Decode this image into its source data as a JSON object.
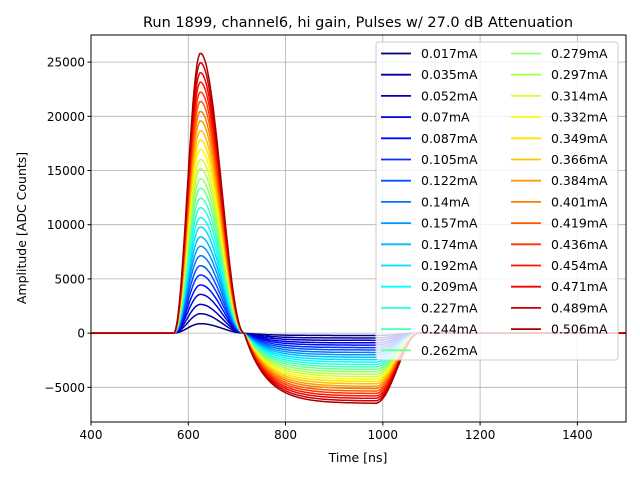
{
  "chart_data": {
    "type": "line",
    "title": "Run 1899, channel6, hi gain, Pulses w/ 27.0 dB Attenuation",
    "xlabel": "Time [ns]",
    "ylabel": "Amplitude [ADC Counts]",
    "xlim": [
      400,
      1500
    ],
    "ylim": [
      -8200,
      27500
    ],
    "xticks": [
      400,
      600,
      800,
      1000,
      1200,
      1400
    ],
    "yticks": [
      -5000,
      0,
      5000,
      10000,
      15000,
      20000,
      25000
    ],
    "grid": true,
    "legend_placement": "top-right",
    "legend_columns": 2,
    "colormap": "jet",
    "pulse_shape": {
      "onset_ns": 570,
      "peak_ns": 625,
      "zero_crossing_ns": 715,
      "undershoot_end_ns": 985,
      "recovered_ns": 1075
    },
    "series": [
      {
        "name": "0.017mA",
        "peak": 870,
        "undershoot": -220
      },
      {
        "name": "0.035mA",
        "peak": 1790,
        "undershoot": -450
      },
      {
        "name": "0.052mA",
        "peak": 2650,
        "undershoot": -670
      },
      {
        "name": "0.07mA",
        "peak": 3570,
        "undershoot": -900
      },
      {
        "name": "0.087mA",
        "peak": 4440,
        "undershoot": -1110
      },
      {
        "name": "0.105mA",
        "peak": 5360,
        "undershoot": -1340
      },
      {
        "name": "0.122mA",
        "peak": 6220,
        "undershoot": -1560
      },
      {
        "name": "0.14mA",
        "peak": 7140,
        "undershoot": -1790
      },
      {
        "name": "0.157mA",
        "peak": 8010,
        "undershoot": -2010
      },
      {
        "name": "0.174mA",
        "peak": 8870,
        "undershoot": -2230
      },
      {
        "name": "0.192mA",
        "peak": 9790,
        "undershoot": -2460
      },
      {
        "name": "0.209mA",
        "peak": 10660,
        "undershoot": -2680
      },
      {
        "name": "0.227mA",
        "peak": 11580,
        "undershoot": -2910
      },
      {
        "name": "0.244mA",
        "peak": 12440,
        "undershoot": -3130
      },
      {
        "name": "0.262mA",
        "peak": 13360,
        "undershoot": -3350
      },
      {
        "name": "0.279mA",
        "peak": 14230,
        "undershoot": -3570
      },
      {
        "name": "0.297mA",
        "peak": 15150,
        "undershoot": -3800
      },
      {
        "name": "0.314mA",
        "peak": 16010,
        "undershoot": -4020
      },
      {
        "name": "0.332mA",
        "peak": 16930,
        "undershoot": -4250
      },
      {
        "name": "0.349mA",
        "peak": 17800,
        "undershoot": -4470
      },
      {
        "name": "0.366mA",
        "peak": 18670,
        "undershoot": -4690
      },
      {
        "name": "0.384mA",
        "peak": 19580,
        "undershoot": -4920
      },
      {
        "name": "0.401mA",
        "peak": 20450,
        "undershoot": -5130
      },
      {
        "name": "0.419mA",
        "peak": 21370,
        "undershoot": -5360
      },
      {
        "name": "0.436mA",
        "peak": 22240,
        "undershoot": -5580
      },
      {
        "name": "0.454mA",
        "peak": 23150,
        "undershoot": -5810
      },
      {
        "name": "0.471mA",
        "peak": 24020,
        "undershoot": -6030
      },
      {
        "name": "0.489mA",
        "peak": 24940,
        "undershoot": -6260
      },
      {
        "name": "0.506mA",
        "peak": 25810,
        "undershoot": -6480
      }
    ]
  }
}
